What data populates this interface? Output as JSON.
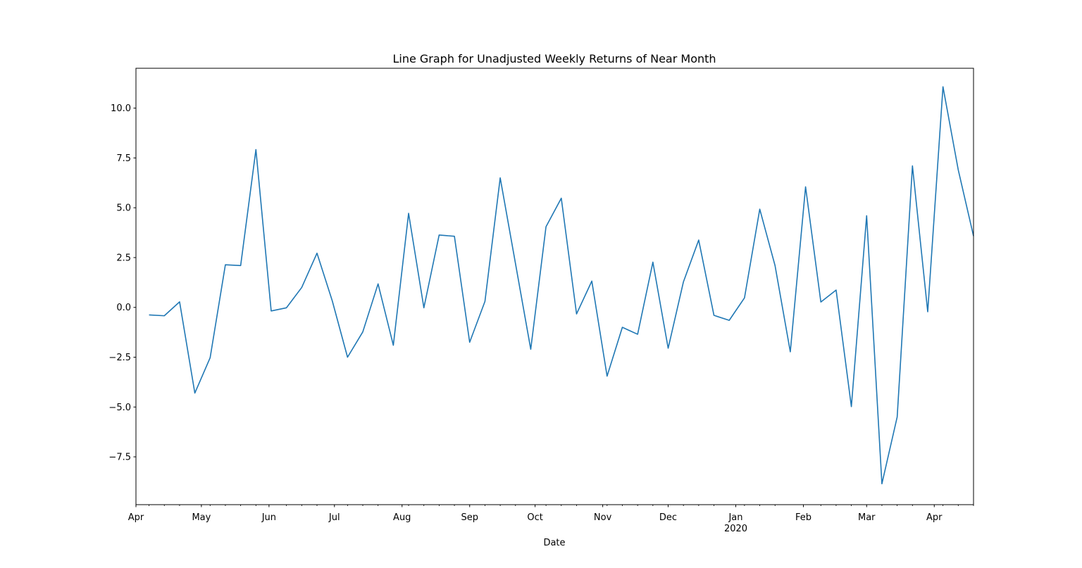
{
  "chart_data": {
    "type": "line",
    "title": "Line Graph for Unadjusted Weekly Returns of Near Month",
    "xlabel": "Date",
    "ylabel": "",
    "grid": false,
    "legend": "none",
    "colors": {
      "line": "#1f77b4",
      "axes": "#000000",
      "background": "#ffffff"
    },
    "xlim": [
      "2019-04-01",
      "2020-04-19"
    ],
    "ylim": [
      -9.9,
      12.0
    ],
    "yticks": [
      10.0,
      7.5,
      5.0,
      2.5,
      0.0,
      -2.5,
      -5.0,
      -7.5
    ],
    "ytick_labels": [
      "10.0",
      "7.5",
      "5.0",
      "2.5",
      "0.0",
      "−2.5",
      "−5.0",
      "−7.5"
    ],
    "xticks_major": [
      {
        "date": "2019-04-01",
        "label": "Apr"
      },
      {
        "date": "2019-05-01",
        "label": "May"
      },
      {
        "date": "2019-06-01",
        "label": "Jun"
      },
      {
        "date": "2019-07-01",
        "label": "Jul"
      },
      {
        "date": "2019-08-01",
        "label": "Aug"
      },
      {
        "date": "2019-09-01",
        "label": "Sep"
      },
      {
        "date": "2019-10-01",
        "label": "Oct"
      },
      {
        "date": "2019-11-01",
        "label": "Nov"
      },
      {
        "date": "2019-12-01",
        "label": "Dec"
      },
      {
        "date": "2020-01-01",
        "label": "Jan",
        "sublabel": "2020"
      },
      {
        "date": "2020-02-01",
        "label": "Feb"
      },
      {
        "date": "2020-03-01",
        "label": "Mar"
      },
      {
        "date": "2020-04-01",
        "label": "Apr"
      }
    ],
    "xticks_minor": [
      "2019-04-07",
      "2019-04-14",
      "2019-04-21",
      "2019-05-05",
      "2019-05-12",
      "2019-05-19",
      "2019-05-26",
      "2019-06-09",
      "2019-06-16",
      "2019-06-23",
      "2019-07-07",
      "2019-07-14",
      "2019-07-21",
      "2019-08-04",
      "2019-08-11",
      "2019-08-18",
      "2019-08-25",
      "2019-09-08",
      "2019-09-15",
      "2019-09-22",
      "2019-10-06",
      "2019-10-13",
      "2019-10-20",
      "2019-11-03",
      "2019-11-10",
      "2019-11-17",
      "2019-11-24",
      "2019-12-08",
      "2019-12-15",
      "2019-12-22",
      "2020-01-05",
      "2020-01-12",
      "2020-01-19",
      "2020-02-09",
      "2020-02-16",
      "2020-02-23",
      "2020-03-08",
      "2020-03-15",
      "2020-03-22",
      "2020-04-05",
      "2020-04-12",
      "2020-04-19"
    ],
    "series": [
      {
        "x": [
          "2019-04-07",
          "2019-04-14",
          "2019-04-21",
          "2019-04-28",
          "2019-05-05",
          "2019-05-12",
          "2019-05-19",
          "2019-05-26",
          "2019-06-02",
          "2019-06-09",
          "2019-06-16",
          "2019-06-23",
          "2019-06-30",
          "2019-07-07",
          "2019-07-14",
          "2019-07-21",
          "2019-07-28",
          "2019-08-04",
          "2019-08-11",
          "2019-08-18",
          "2019-08-25",
          "2019-09-01",
          "2019-09-08",
          "2019-09-15",
          "2019-09-22",
          "2019-09-29",
          "2019-10-06",
          "2019-10-13",
          "2019-10-20",
          "2019-10-27",
          "2019-11-03",
          "2019-11-10",
          "2019-11-17",
          "2019-11-24",
          "2019-12-01",
          "2019-12-08",
          "2019-12-15",
          "2019-12-22",
          "2019-12-29",
          "2020-01-05",
          "2020-01-12",
          "2020-01-19",
          "2020-01-26",
          "2020-02-02",
          "2020-02-09",
          "2020-02-16",
          "2020-02-23",
          "2020-03-01",
          "2020-03-08",
          "2020-03-15",
          "2020-03-22",
          "2020-03-29",
          "2020-04-05",
          "2020-04-12",
          "2020-04-19"
        ],
        "y": [
          -0.38,
          -0.42,
          0.28,
          -4.3,
          -2.53,
          2.14,
          2.1,
          7.92,
          -0.18,
          -0.02,
          1.0,
          2.72,
          0.33,
          -2.5,
          -1.23,
          1.18,
          -1.9,
          4.72,
          -0.02,
          3.63,
          3.57,
          -1.75,
          0.3,
          6.5,
          2.2,
          -2.1,
          4.05,
          5.48,
          -0.33,
          1.32,
          -3.45,
          -1.0,
          -1.35,
          2.27,
          -2.05,
          1.28,
          3.38,
          -0.4,
          -0.65,
          0.48,
          4.93,
          2.1,
          -2.23,
          6.05,
          0.27,
          0.87,
          -4.98,
          4.6,
          -8.85,
          -5.5,
          7.1,
          -0.22,
          11.07,
          6.9,
          3.58
        ]
      }
    ]
  }
}
